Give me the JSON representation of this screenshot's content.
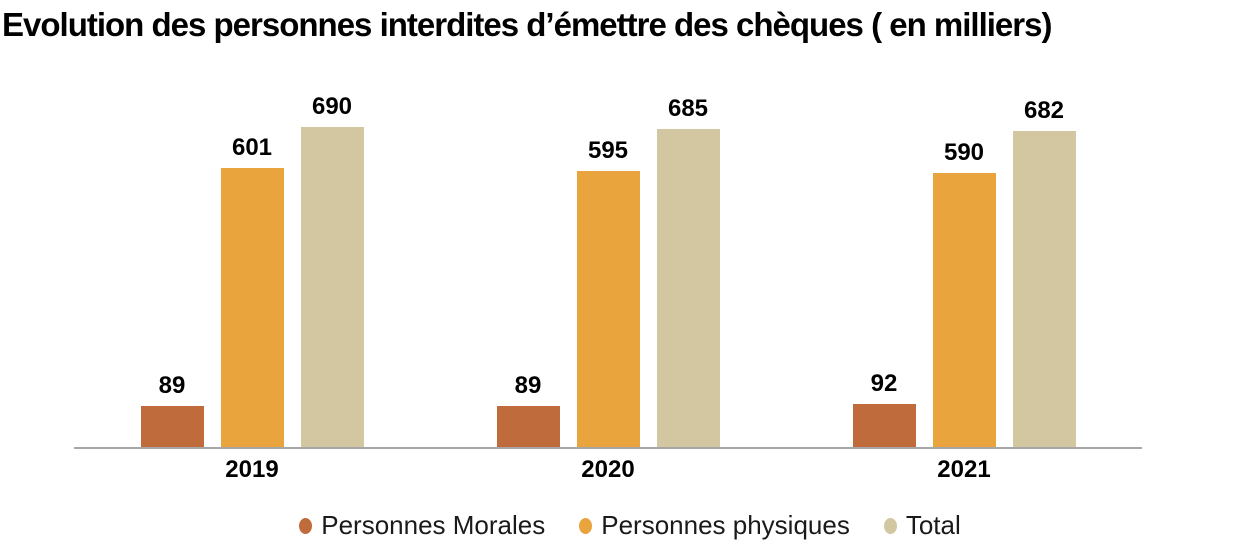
{
  "chart": {
    "title": "Evolution des personnes interdites d’émettre des chèques ( en milliers)"
  },
  "chart_data": {
    "type": "bar",
    "title": "Evolution des personnes interdites d’émettre des chèques ( en milliers)",
    "categories": [
      "2019",
      "2020",
      "2021"
    ],
    "series": [
      {
        "name": "Personnes Morales",
        "color": "#BF6B3B",
        "values": [
          89,
          89,
          92
        ]
      },
      {
        "name": "Personnes physiques",
        "color": "#E9A43D",
        "values": [
          601,
          595,
          590
        ]
      },
      {
        "name": "Total",
        "color": "#D3C7A2",
        "values": [
          690,
          685,
          682
        ]
      }
    ],
    "xlabel": "",
    "ylabel": "",
    "ylim": [
      0,
      690
    ],
    "grid": false,
    "y_axis_visible": false,
    "value_labels": true,
    "legend_position": "bottom"
  },
  "colors": {
    "background": "#FFFFFF",
    "axis_line": "#A6A6A6",
    "text": "#000000"
  }
}
